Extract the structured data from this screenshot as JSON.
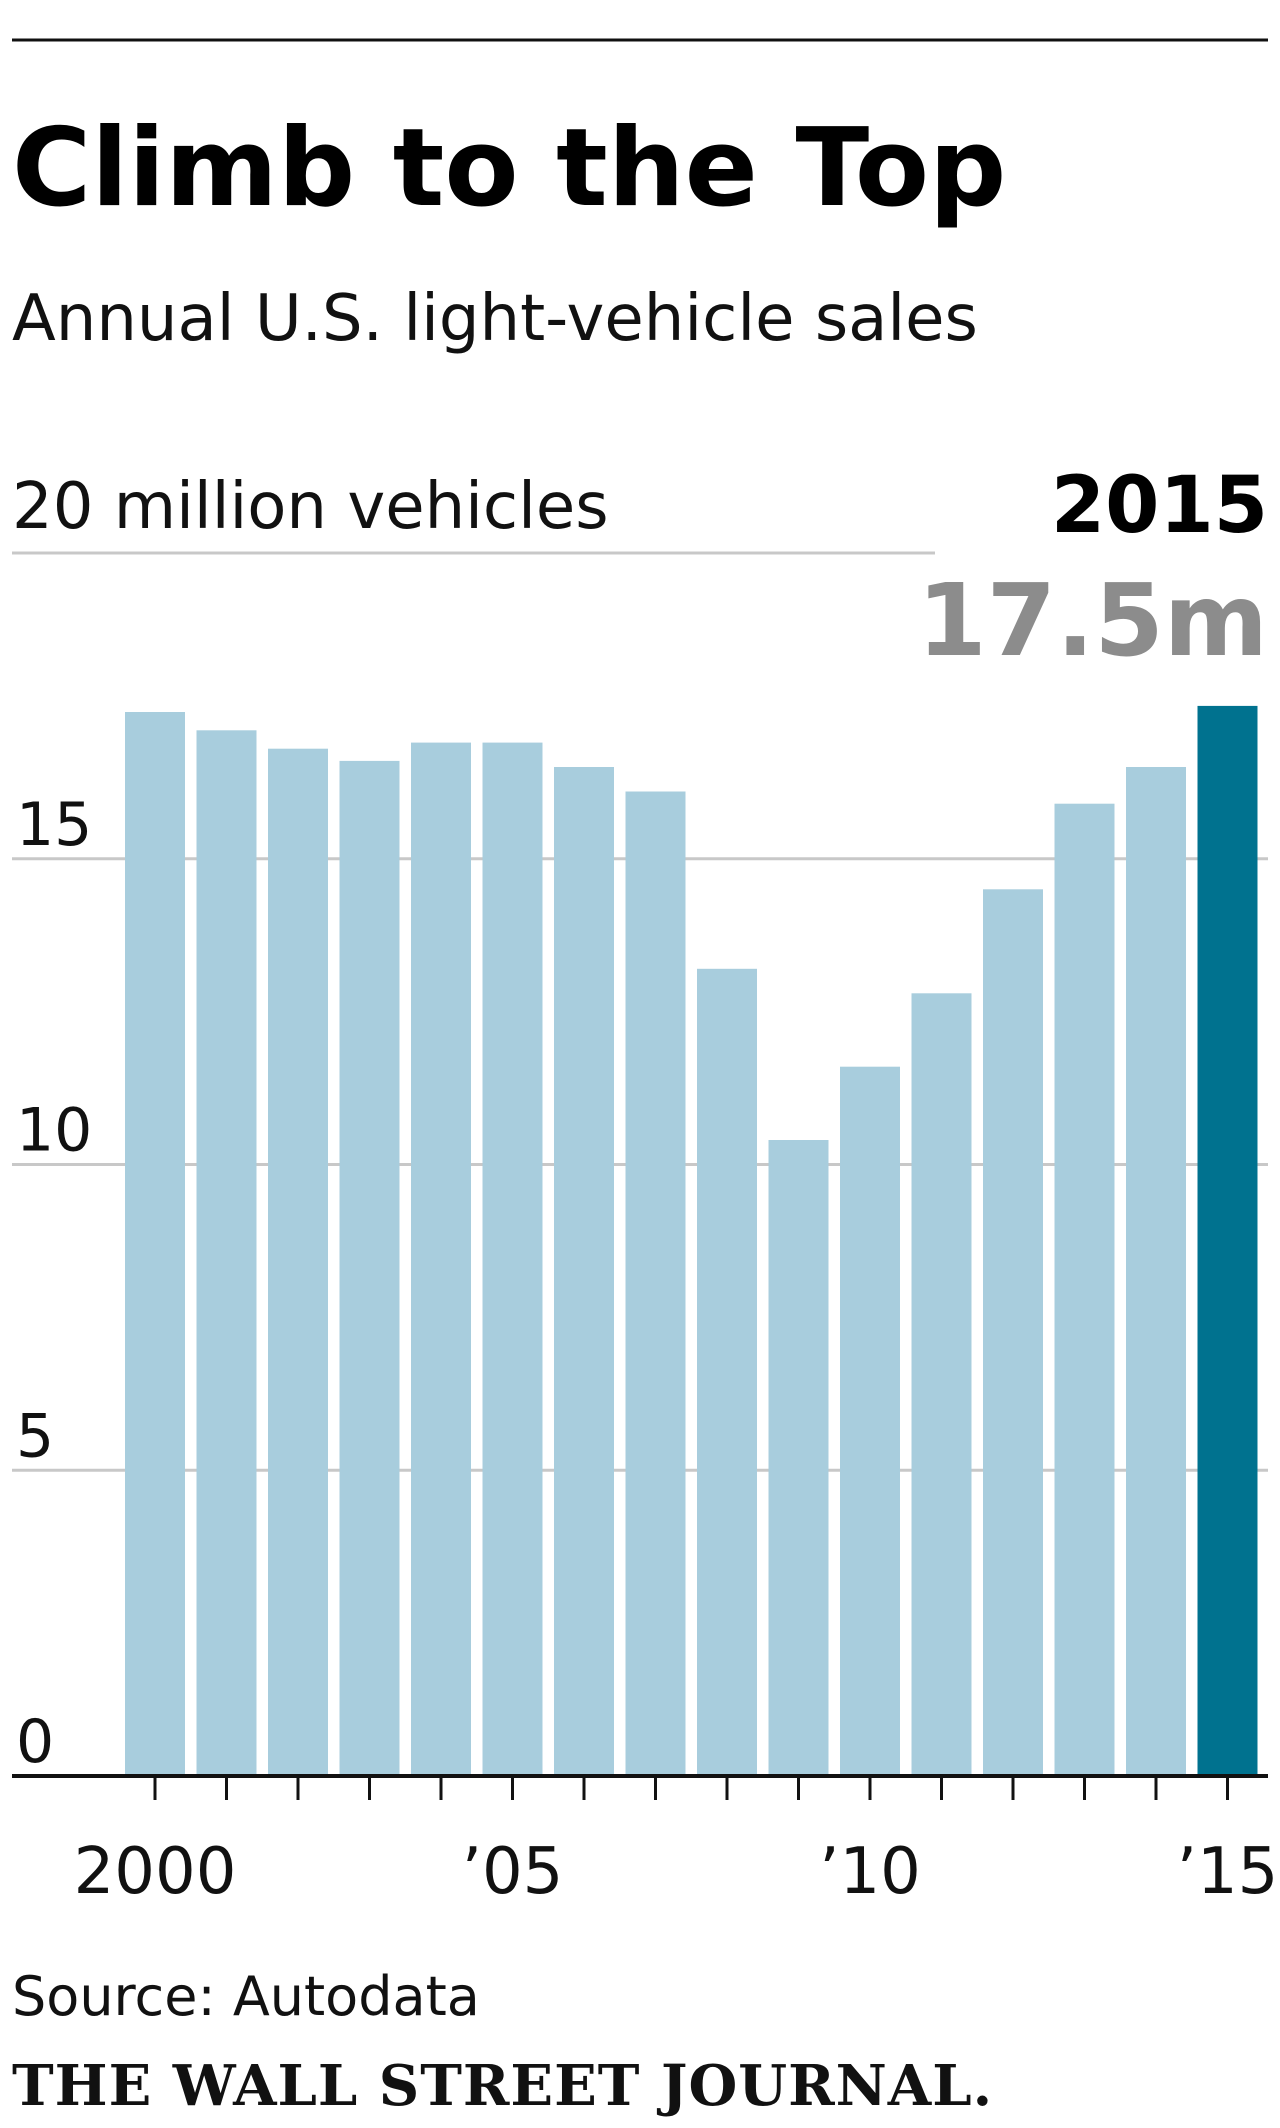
{
  "header": {
    "title": "Climb to the Top",
    "subtitle": "Annual U.S. light-vehicle sales"
  },
  "chart_data": {
    "type": "bar",
    "title": "Climb to the Top",
    "subtitle": "Annual U.S. light-vehicle sales",
    "unit_label": "20 million vehicles",
    "categories": [
      "2000",
      "2001",
      "2002",
      "2003",
      "2004",
      "2005",
      "2006",
      "2007",
      "2008",
      "2009",
      "2010",
      "2011",
      "2012",
      "2013",
      "2014",
      "2015"
    ],
    "values": [
      17.4,
      17.1,
      16.8,
      16.6,
      16.9,
      16.9,
      16.5,
      16.1,
      13.2,
      10.4,
      11.6,
      12.8,
      14.5,
      15.9,
      16.5,
      17.5
    ],
    "ylim": [
      0,
      20
    ],
    "yticks": [
      0,
      5,
      10,
      15
    ],
    "ytick_labels": [
      "0",
      "5",
      "10",
      "15"
    ],
    "xtick_labels": [
      {
        "index": 0,
        "label": "2000"
      },
      {
        "index": 5,
        "label": "’05"
      },
      {
        "index": 10,
        "label": "’10"
      },
      {
        "index": 15,
        "label": "’15"
      }
    ],
    "grid": true,
    "highlight": {
      "index": 15,
      "year_label": "2015",
      "value_label": "17.5m"
    },
    "colors": {
      "bar": "#a8cddd",
      "highlight": "#00728f",
      "grid": "#c8c8c8",
      "axis": "#111111",
      "value_label": "#8c8c8c"
    }
  },
  "footer": {
    "source": "Source: Autodata",
    "brand": "THE WALL STREET JOURNAL."
  }
}
